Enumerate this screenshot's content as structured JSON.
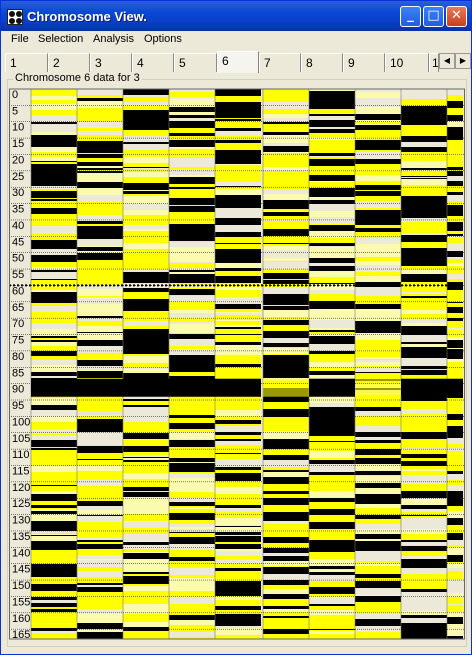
{
  "window": {
    "title": "Chromosome View."
  },
  "menu": {
    "items": [
      "File",
      "Selection",
      "Analysis",
      "Options"
    ]
  },
  "tabs": {
    "items": [
      "1",
      "2",
      "3",
      "4",
      "5",
      "6",
      "7",
      "8",
      "9",
      "10",
      "1"
    ],
    "active_index": 5
  },
  "panel": {
    "title": "Chromosome 6 data for  3"
  },
  "chart_data": {
    "type": "heatmap",
    "y_ticks": [
      "0",
      "5",
      "10",
      "15",
      "20",
      "25",
      "30",
      "35",
      "40",
      "45",
      "50",
      "55",
      "60",
      "65",
      "70",
      "75",
      "80",
      "85",
      "90",
      "95",
      "100",
      "105",
      "110",
      "115",
      "120",
      "125",
      "130",
      "135",
      "140",
      "145",
      "150",
      "155",
      "160",
      "165"
    ],
    "columns": 10,
    "highlight_y": 60,
    "yrange": [
      0,
      168
    ],
    "colors": {
      "high": "#ffff00",
      "low": "#000000",
      "mid_light": "#fbfbb0",
      "blank": "#ece9d8",
      "marker": "#000000"
    }
  }
}
